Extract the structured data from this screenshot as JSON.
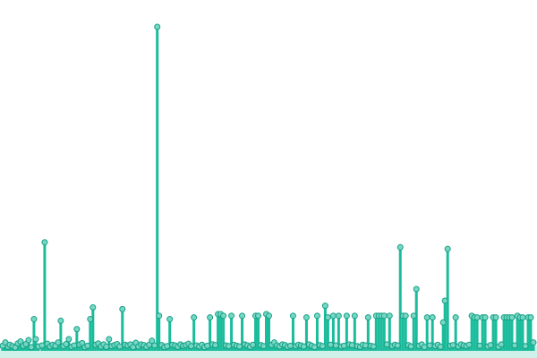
{
  "chart_data": {
    "type": "lollipop",
    "title": "",
    "xlabel": "",
    "ylabel": "",
    "grid": false,
    "legend": "none",
    "colors": {
      "stem": "#1abc9c",
      "marker_fill": "#76d7c4",
      "marker_stroke": "#16a085"
    },
    "x_range": [
      0,
      599
    ],
    "y_range": [
      0,
      100
    ],
    "x": [
      2,
      5,
      8,
      10,
      13,
      16,
      19,
      22,
      25,
      28,
      31,
      34,
      37,
      39,
      42,
      46,
      49,
      52,
      55,
      58,
      61,
      64,
      67,
      70,
      73,
      76,
      79,
      82,
      85,
      88,
      91,
      94,
      97,
      100,
      103,
      106,
      109,
      112,
      115,
      118,
      121,
      124,
      127,
      130,
      133,
      136,
      139,
      142,
      145,
      148,
      151,
      154,
      157,
      160,
      163,
      166,
      169,
      172,
      175,
      177,
      180,
      183,
      186,
      189,
      192,
      195,
      198,
      201,
      204,
      207,
      210,
      213,
      216,
      219,
      222,
      225,
      228,
      231,
      234,
      237,
      240,
      243,
      246,
      249,
      252,
      255,
      258,
      261,
      264,
      267,
      270,
      273,
      276,
      279,
      282,
      285,
      288,
      291,
      294,
      297,
      300,
      303,
      306,
      309,
      312,
      315,
      318,
      321,
      324,
      327,
      330,
      333,
      336,
      339,
      342,
      345,
      348,
      351,
      354,
      357,
      360,
      363,
      366,
      369,
      372,
      375,
      378,
      381,
      384,
      387,
      390,
      393,
      396,
      399,
      402,
      405,
      408,
      411,
      414,
      417,
      420,
      423,
      426,
      429,
      432,
      435,
      438,
      441,
      444,
      447,
      450,
      453,
      456,
      459,
      462,
      465,
      468,
      471,
      474,
      477,
      480,
      483,
      486,
      489,
      492,
      495,
      497,
      500,
      503,
      506,
      509,
      512,
      515,
      518,
      521,
      524,
      527,
      530,
      533,
      536,
      539,
      542,
      545,
      548,
      551,
      554,
      557,
      560,
      563,
      566,
      569,
      572,
      575,
      578,
      581,
      584,
      587,
      590,
      593,
      596
    ],
    "y": [
      1.5,
      2.5,
      1.2,
      1.8,
      1.4,
      1.0,
      2.2,
      2.8,
      1.5,
      2.0,
      3.2,
      1.1,
      9.5,
      3.5,
      1.3,
      1.6,
      32.5,
      2.1,
      1.3,
      1.8,
      1.5,
      2.5,
      9.0,
      1.4,
      2.0,
      3.5,
      1.2,
      1.6,
      6.5,
      1.9,
      2.3,
      1.1,
      1.5,
      9.5,
      13.0,
      1.8,
      2.2,
      1.3,
      1.9,
      1.2,
      3.5,
      1.4,
      1.7,
      2.0,
      1.3,
      12.5,
      1.8,
      1.6,
      1.9,
      1.1,
      2.4,
      1.3,
      1.9,
      1.7,
      1.2,
      1.8,
      3.0,
      1.6,
      97.0,
      10.5,
      1.7,
      1.1,
      1.4,
      9.5,
      1.8,
      1.6,
      1.2,
      1.9,
      1.5,
      1.7,
      2.1,
      1.4,
      10.0,
      1.6,
      1.3,
      1.8,
      1.1,
      1.5,
      10.0,
      1.9,
      1.7,
      11.0,
      11.0,
      10.5,
      1.6,
      1.4,
      10.5,
      1.8,
      1.5,
      1.3,
      10.5,
      1.9,
      1.6,
      1.2,
      1.8,
      10.5,
      10.5,
      1.7,
      1.4,
      11.0,
      10.5,
      1.8,
      2.5,
      1.6,
      1.3,
      1.9,
      1.7,
      1.2,
      1.5,
      10.5,
      1.4,
      1.8,
      1.6,
      1.3,
      10.0,
      1.9,
      1.5,
      1.1,
      10.5,
      1.7,
      1.4,
      13.5,
      10.0,
      1.8,
      10.5,
      1.6,
      10.5,
      1.3,
      1.5,
      10.5,
      1.9,
      1.7,
      10.5,
      1.4,
      1.2,
      1.8,
      1.6,
      10.0,
      1.5,
      1.3,
      10.5,
      10.5,
      10.5,
      10.5,
      1.9,
      10.5,
      1.4,
      1.8,
      1.6,
      31.0,
      10.5,
      10.5,
      1.7,
      1.3,
      10.5,
      18.5,
      1.5,
      1.9,
      1.1,
      10.0,
      1.6,
      10.0,
      1.4,
      1.8,
      1.2,
      8.5,
      15.0,
      30.5,
      1.5,
      1.7,
      10.0,
      1.3,
      1.9,
      1.6,
      1.4,
      1.8,
      10.5,
      10.0,
      10.0,
      1.5,
      10.0,
      10.0,
      1.3,
      1.7,
      10.0,
      10.0,
      1.2,
      1.9,
      10.0,
      10.0,
      10.0,
      10.0,
      1.6,
      10.5,
      10.0,
      10.0,
      1.4,
      10.0,
      10.0,
      2.5
    ]
  }
}
